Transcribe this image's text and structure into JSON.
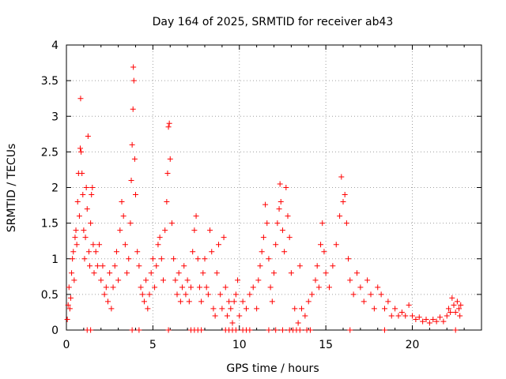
{
  "chart_data": {
    "type": "scatter",
    "title": "Day 164 of 2025, SRMTID for receiver ab43",
    "xlabel": "GPS time / hours",
    "ylabel": "SRMTID / TECUs",
    "xlim": [
      0,
      24
    ],
    "ylim": [
      0,
      4
    ],
    "x_ticks": [
      "0",
      "5",
      "10",
      "15",
      "20"
    ],
    "y_ticks": [
      "0",
      "0.5",
      "1",
      "1.5",
      "2",
      "2.5",
      "3",
      "3.5",
      "4"
    ],
    "grid": true,
    "marker": "+",
    "color": "#ff0000",
    "series": [
      {
        "name": "SRMTID",
        "points": [
          [
            0.05,
            0.15
          ],
          [
            0.1,
            0.35
          ],
          [
            0.15,
            0.6
          ],
          [
            0.2,
            0.3
          ],
          [
            0.25,
            0.45
          ],
          [
            0.3,
            0.8
          ],
          [
            0.35,
            1.0
          ],
          [
            0.4,
            1.1
          ],
          [
            0.45,
            0.7
          ],
          [
            0.5,
            1.3
          ],
          [
            0.55,
            1.4
          ],
          [
            0.6,
            1.2
          ],
          [
            0.65,
            1.8
          ],
          [
            0.7,
            2.2
          ],
          [
            0.75,
            1.6
          ],
          [
            0.8,
            2.55
          ],
          [
            0.82,
            3.25
          ],
          [
            0.85,
            2.5
          ],
          [
            0.9,
            2.2
          ],
          [
            0.95,
            1.9
          ],
          [
            1.0,
            1.4
          ],
          [
            1.05,
            1.0
          ],
          [
            1.1,
            1.3
          ],
          [
            1.15,
            2.0
          ],
          [
            1.2,
            1.7
          ],
          [
            1.25,
            2.72
          ],
          [
            1.3,
            1.1
          ],
          [
            1.35,
            0.9
          ],
          [
            1.4,
            1.5
          ],
          [
            1.45,
            1.9
          ],
          [
            1.5,
            2.0
          ],
          [
            1.55,
            1.2
          ],
          [
            1.6,
            0.8
          ],
          [
            1.7,
            1.1
          ],
          [
            1.8,
            0.9
          ],
          [
            1.9,
            1.2
          ],
          [
            2.0,
            0.7
          ],
          [
            2.1,
            0.9
          ],
          [
            2.2,
            0.5
          ],
          [
            2.3,
            0.6
          ],
          [
            2.4,
            0.4
          ],
          [
            2.5,
            0.8
          ],
          [
            2.6,
            0.3
          ],
          [
            2.7,
            0.6
          ],
          [
            2.8,
            0.9
          ],
          [
            2.9,
            1.1
          ],
          [
            3.0,
            0.7
          ],
          [
            3.1,
            1.4
          ],
          [
            3.2,
            1.8
          ],
          [
            3.3,
            1.6
          ],
          [
            3.4,
            1.2
          ],
          [
            3.5,
            0.8
          ],
          [
            3.6,
            1.0
          ],
          [
            3.7,
            1.5
          ],
          [
            3.75,
            2.1
          ],
          [
            3.8,
            2.6
          ],
          [
            3.85,
            3.1
          ],
          [
            3.87,
            3.69
          ],
          [
            3.9,
            3.5
          ],
          [
            3.95,
            2.4
          ],
          [
            4.0,
            1.9
          ],
          [
            4.1,
            1.1
          ],
          [
            4.2,
            0.9
          ],
          [
            4.3,
            0.6
          ],
          [
            4.4,
            0.5
          ],
          [
            4.5,
            0.4
          ],
          [
            4.6,
            0.7
          ],
          [
            4.7,
            0.3
          ],
          [
            4.8,
            0.5
          ],
          [
            4.9,
            0.8
          ],
          [
            5.0,
            1.0
          ],
          [
            5.1,
            0.6
          ],
          [
            5.2,
            0.9
          ],
          [
            5.3,
            1.2
          ],
          [
            5.4,
            1.3
          ],
          [
            5.5,
            1.0
          ],
          [
            5.6,
            0.7
          ],
          [
            5.7,
            1.4
          ],
          [
            5.8,
            1.8
          ],
          [
            5.85,
            2.2
          ],
          [
            5.9,
            2.85
          ],
          [
            5.95,
            2.9
          ],
          [
            6.0,
            2.4
          ],
          [
            6.1,
            1.5
          ],
          [
            6.2,
            1.0
          ],
          [
            6.3,
            0.7
          ],
          [
            6.4,
            0.5
          ],
          [
            6.5,
            0.8
          ],
          [
            6.6,
            0.4
          ],
          [
            6.7,
            0.6
          ],
          [
            6.8,
            0.9
          ],
          [
            6.9,
            0.5
          ],
          [
            7.0,
            0.7
          ],
          [
            7.1,
            0.4
          ],
          [
            7.2,
            0.6
          ],
          [
            7.3,
            1.1
          ],
          [
            7.4,
            1.4
          ],
          [
            7.5,
            1.6
          ],
          [
            7.6,
            1.0
          ],
          [
            7.7,
            0.6
          ],
          [
            7.8,
            0.4
          ],
          [
            7.9,
            0.8
          ],
          [
            8.0,
            1.0
          ],
          [
            8.1,
            0.6
          ],
          [
            8.2,
            0.5
          ],
          [
            8.3,
            1.4
          ],
          [
            8.4,
            1.1
          ],
          [
            8.5,
            0.3
          ],
          [
            8.6,
            0.2
          ],
          [
            8.7,
            0.8
          ],
          [
            8.8,
            1.2
          ],
          [
            8.9,
            0.5
          ],
          [
            9.0,
            0.3
          ],
          [
            9.1,
            1.3
          ],
          [
            9.2,
            0.6
          ],
          [
            9.3,
            0.2
          ],
          [
            9.4,
            0.4
          ],
          [
            9.5,
            0.3
          ],
          [
            9.6,
            0.1
          ],
          [
            9.7,
            0.4
          ],
          [
            9.8,
            0.5
          ],
          [
            9.9,
            0.7
          ],
          [
            10.0,
            0.2
          ],
          [
            10.2,
            0.4
          ],
          [
            10.4,
            0.3
          ],
          [
            10.6,
            0.5
          ],
          [
            10.8,
            0.6
          ],
          [
            11.0,
            0.3
          ],
          [
            11.1,
            0.7
          ],
          [
            11.2,
            0.9
          ],
          [
            11.3,
            1.1
          ],
          [
            11.4,
            1.3
          ],
          [
            11.5,
            1.76
          ],
          [
            11.6,
            1.5
          ],
          [
            11.7,
            1.0
          ],
          [
            11.8,
            0.6
          ],
          [
            11.9,
            0.4
          ],
          [
            12.0,
            0.8
          ],
          [
            12.1,
            1.2
          ],
          [
            12.2,
            1.5
          ],
          [
            12.3,
            1.7
          ],
          [
            12.35,
            2.05
          ],
          [
            12.4,
            1.8
          ],
          [
            12.5,
            1.4
          ],
          [
            12.6,
            1.1
          ],
          [
            12.7,
            2.0
          ],
          [
            12.8,
            1.6
          ],
          [
            12.9,
            1.3
          ],
          [
            13.0,
            0.8
          ],
          [
            13.2,
            0.3
          ],
          [
            13.4,
            0.1
          ],
          [
            13.5,
            0.9
          ],
          [
            13.6,
            0.3
          ],
          [
            13.8,
            0.2
          ],
          [
            14.0,
            0.4
          ],
          [
            14.2,
            0.5
          ],
          [
            14.4,
            0.7
          ],
          [
            14.5,
            0.9
          ],
          [
            14.6,
            0.6
          ],
          [
            14.7,
            1.2
          ],
          [
            14.8,
            1.5
          ],
          [
            14.9,
            1.1
          ],
          [
            15.0,
            0.8
          ],
          [
            15.2,
            0.6
          ],
          [
            15.4,
            0.9
          ],
          [
            15.6,
            1.2
          ],
          [
            15.8,
            1.6
          ],
          [
            15.9,
            2.15
          ],
          [
            16.0,
            1.8
          ],
          [
            16.1,
            1.9
          ],
          [
            16.2,
            1.5
          ],
          [
            16.3,
            1.0
          ],
          [
            16.4,
            0.7
          ],
          [
            16.6,
            0.5
          ],
          [
            16.8,
            0.8
          ],
          [
            17.0,
            0.6
          ],
          [
            17.2,
            0.4
          ],
          [
            17.4,
            0.7
          ],
          [
            17.6,
            0.5
          ],
          [
            17.8,
            0.3
          ],
          [
            18.0,
            0.6
          ],
          [
            18.2,
            0.5
          ],
          [
            18.4,
            0.3
          ],
          [
            18.6,
            0.4
          ],
          [
            18.8,
            0.2
          ],
          [
            19.0,
            0.3
          ],
          [
            19.2,
            0.2
          ],
          [
            19.4,
            0.25
          ],
          [
            19.6,
            0.2
          ],
          [
            19.8,
            0.35
          ],
          [
            20.0,
            0.2
          ],
          [
            20.2,
            0.15
          ],
          [
            20.4,
            0.18
          ],
          [
            20.6,
            0.12
          ],
          [
            20.8,
            0.15
          ],
          [
            21.0,
            0.1
          ],
          [
            21.2,
            0.15
          ],
          [
            21.4,
            0.12
          ],
          [
            21.6,
            0.18
          ],
          [
            21.8,
            0.12
          ],
          [
            22.0,
            0.2
          ],
          [
            22.1,
            0.3
          ],
          [
            22.2,
            0.25
          ],
          [
            22.3,
            0.45
          ],
          [
            22.4,
            0.35
          ],
          [
            22.5,
            0.25
          ],
          [
            22.6,
            0.4
          ],
          [
            22.7,
            0.3
          ],
          [
            22.75,
            0.2
          ],
          [
            22.8,
            0.35
          ]
        ],
        "zero_points": [
          1.2,
          1.4,
          3.8,
          4.2,
          5.9,
          7.2,
          7.4,
          7.6,
          7.8,
          9.2,
          9.4,
          9.6,
          9.8,
          10.2,
          10.4,
          10.6,
          11.7,
          12.1,
          12.5,
          12.9,
          13.1,
          13.3,
          13.5,
          13.9,
          14.1,
          16.4,
          18.4,
          22.5
        ]
      }
    ]
  }
}
